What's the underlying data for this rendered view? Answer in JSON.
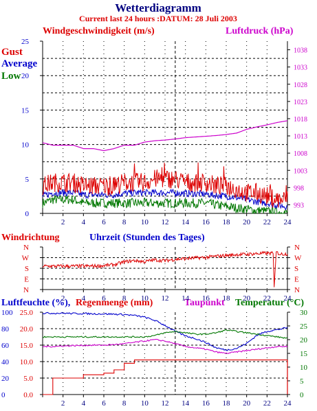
{
  "title": "Wetterdiagramm",
  "subtitle": "Current last 24 hours :DATUM: 28 Juli 2003",
  "colors": {
    "red": "#dd0000",
    "blue": "#0000cc",
    "green": "#007700",
    "magenta": "#cc00cc",
    "navy": "#000080",
    "grid": "#000000"
  },
  "panels": [
    {
      "id": "wind",
      "left_label": "Windgeschwindigkeit (m/s)",
      "right_label": "Luftdruck (hPa)",
      "legend": [
        "Gust",
        "Average",
        "Low"
      ],
      "left_ticks": [
        "0",
        "5",
        "10",
        "15",
        "20",
        "25"
      ],
      "right_ticks": [
        "993",
        "998",
        "1003",
        "1008",
        "1013",
        "1018",
        "1023",
        "1028",
        "1033",
        "1038"
      ]
    },
    {
      "id": "direction",
      "left_label": "Windrichtung",
      "center_label": "Uhrzeit (Stunden des Tages)",
      "ticks": [
        "N",
        "E",
        "S",
        "W",
        "N"
      ]
    },
    {
      "id": "humidity",
      "label_humidity": "Luftfeuchte (%),",
      "label_rain": "Regenmenge (mm)",
      "label_dew": "Taupunkt",
      "label_temp": "Temperatur (°C)",
      "humidity_ticks": [
        "0",
        "20",
        "40",
        "60",
        "80",
        "100"
      ],
      "rain_ticks": [
        "0.0",
        "5.0",
        "10.0",
        "15.0",
        "20.0",
        "25.0"
      ],
      "temp_ticks": [
        "0",
        "5",
        "10",
        "15",
        "20",
        "25",
        "30"
      ]
    }
  ],
  "x_ticks": [
    "2",
    "4",
    "6",
    "8",
    "10",
    "12",
    "14",
    "16",
    "18",
    "20",
    "22",
    "24"
  ],
  "chart_data": [
    {
      "type": "line",
      "title": "Windgeschwindigkeit (m/s) / Luftdruck (hPa)",
      "xlabel": "Uhrzeit (Stunden des Tages)",
      "xlim": [
        0,
        24
      ],
      "ylim": [
        0,
        25
      ],
      "y2lim": [
        990.5,
        1040.5
      ],
      "x": [
        0,
        1,
        2,
        3,
        4,
        5,
        6,
        7,
        8,
        9,
        10,
        11,
        12,
        13,
        14,
        15,
        16,
        17,
        18,
        19,
        20,
        21,
        22,
        23,
        24
      ],
      "series": [
        {
          "name": "Gust",
          "axis": "left",
          "values": [
            4,
            4.5,
            4.5,
            4.5,
            4,
            4,
            4,
            4,
            4.5,
            4.5,
            4.5,
            5,
            5,
            5,
            4.5,
            4.5,
            4.5,
            4,
            4,
            3.5,
            3,
            3,
            2.5,
            2,
            2
          ]
        },
        {
          "name": "Average",
          "axis": "left",
          "values": [
            2.5,
            3,
            3,
            3,
            2.7,
            2.7,
            2.7,
            2.7,
            2.9,
            3,
            3,
            3,
            3,
            3,
            2.9,
            2.9,
            2.8,
            2.6,
            2.5,
            2.3,
            2,
            1.7,
            1.5,
            1.2,
            1
          ]
        },
        {
          "name": "Low",
          "axis": "left",
          "values": [
            1.5,
            2,
            2,
            2,
            1.5,
            1.5,
            1.5,
            1.5,
            1.5,
            1.5,
            1.5,
            1.5,
            1.5,
            1.5,
            1.5,
            1.5,
            1.5,
            1.2,
            1,
            0.8,
            0.6,
            0.4,
            0.3,
            0.2,
            0.1
          ]
        },
        {
          "name": "Luftdruck",
          "axis": "right",
          "values": [
            1011,
            1010.3,
            1010.3,
            1010.3,
            1009.3,
            1009.3,
            1008.7,
            1009.3,
            1010.3,
            1010.3,
            1011.2,
            1011.6,
            1011.8,
            1012.1,
            1012.5,
            1012.7,
            1012.9,
            1013.1,
            1013.4,
            1013.8,
            1014.9,
            1015.6,
            1016.2,
            1016.9,
            1017.4
          ]
        }
      ]
    },
    {
      "type": "line",
      "title": "Windrichtung",
      "xlabel": "Uhrzeit (Stunden des Tages)",
      "xlim": [
        0,
        24
      ],
      "ylim": [
        0,
        360
      ],
      "series": [
        {
          "name": "Windrichtung",
          "values": [
            [
              0,
              198
            ],
            [
              2,
              198
            ],
            [
              4,
              198
            ],
            [
              5.5,
              200
            ],
            [
              6.5,
              206
            ],
            [
              7.2,
              214
            ],
            [
              8,
              234
            ],
            [
              9,
              246
            ],
            [
              10,
              236
            ],
            [
              11,
              251
            ],
            [
              12,
              244
            ],
            [
              13,
              256
            ],
            [
              14,
              262
            ],
            [
              15,
              268
            ],
            [
              16,
              272
            ],
            [
              17,
              282
            ],
            [
              18,
              288
            ],
            [
              19,
              296
            ],
            [
              20,
              298
            ],
            [
              21,
              304
            ],
            [
              22,
              308
            ],
            [
              22.6,
              306
            ],
            [
              22.7,
              20
            ],
            [
              22.9,
              316
            ],
            [
              23.3,
              300
            ],
            [
              24,
              302
            ]
          ]
        }
      ]
    },
    {
      "type": "line",
      "title": "Luftfeuchte (%), Regenmenge (mm), Taupunkt, Temperatur (°C)",
      "xlabel": "Uhrzeit (Stunden des Tages)",
      "xlim": [
        0,
        24
      ],
      "ylim": [
        0,
        25
      ],
      "y2lim": [
        0,
        30
      ],
      "x": [
        0,
        1,
        2,
        3,
        4,
        5,
        6,
        7,
        8,
        9,
        10,
        11,
        12,
        13,
        14,
        15,
        16,
        17,
        18,
        19,
        20,
        21,
        22,
        23,
        24
      ],
      "series": [
        {
          "name": "Luftfeuchte",
          "axis": "left",
          "values": [
            24.7,
            24.7,
            24.7,
            24.6,
            24.6,
            24.5,
            24.5,
            24.4,
            24.3,
            24,
            23.5,
            22.5,
            21,
            19.2,
            17.8,
            17,
            15.8,
            14.2,
            13.5,
            14,
            15.5,
            18,
            19.2,
            19.7,
            20.3
          ]
        },
        {
          "name": "Regenmenge",
          "axis": "left",
          "values": [
            0,
            5,
            5,
            5,
            6,
            6,
            6.5,
            7.5,
            9.5,
            10.5,
            10.5,
            10.5,
            10.5,
            10.5,
            10.5,
            10.5,
            10.5,
            10.5,
            10.5,
            10.5,
            10.5,
            10.5,
            10.5,
            10.5,
            10.5
          ]
        },
        {
          "name": "Taupunkt",
          "axis": "right",
          "values": [
            17.5,
            17.5,
            17.7,
            17.8,
            17.9,
            18,
            18,
            18.2,
            18.5,
            19,
            19.5,
            20,
            19.5,
            18.5,
            17.5,
            17,
            16.5,
            15.5,
            15,
            15.5,
            16,
            16.5,
            17,
            17.5,
            17.5
          ]
        },
        {
          "name": "Temperatur",
          "axis": "right",
          "values": [
            21,
            21,
            21,
            21,
            21,
            21,
            21,
            21,
            21,
            21,
            21,
            21.5,
            22.5,
            23,
            22.5,
            22,
            22,
            22.5,
            23.5,
            23,
            22.5,
            22,
            21.5,
            21,
            20.5
          ]
        }
      ]
    }
  ]
}
